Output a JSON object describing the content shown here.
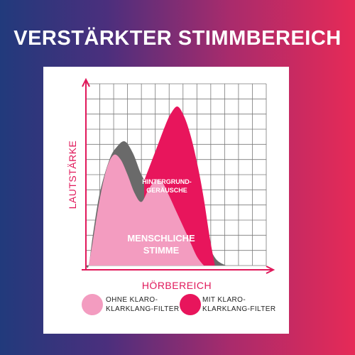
{
  "title": "VERSTÄRKTER STIMMBEREICH",
  "colors": {
    "background_left": "#213a7c",
    "background_right": "#e62a57",
    "grid": "#7a7a7a",
    "axis": "#e0185a",
    "noise": "#6a6a6a",
    "voice_without_filter": "#f39cc0",
    "voice_with_filter": "#e8155c"
  },
  "chart_data": {
    "type": "area",
    "xlabel": "HÖRBEREICH",
    "ylabel": "LAUTSTÄRKE",
    "grid": true,
    "xlim": [
      0,
      13
    ],
    "ylim": [
      0,
      12
    ],
    "series": [
      {
        "name": "HINTERGRUND-GERÄUSCHE",
        "color": "#6a6a6a",
        "x": [
          0,
          0.2,
          0.5,
          1.0,
          1.7,
          2.2,
          2.8,
          3.4,
          4.0,
          4.6,
          5.2,
          5.8,
          6.4,
          7.0,
          7.6,
          8.2,
          8.8,
          9.4,
          10.1
        ],
        "y": [
          0,
          0,
          2.0,
          4.8,
          7.0,
          7.8,
          8.2,
          7.4,
          6.0,
          5.2,
          5.6,
          6.0,
          5.6,
          4.7,
          3.7,
          2.6,
          1.4,
          0.4,
          0
        ]
      },
      {
        "name": "MIT KLARO-KLARKLANG-FILTER",
        "color": "#e8155c",
        "x": [
          4.2,
          4.7,
          5.2,
          5.7,
          6.1,
          6.6,
          7.1,
          7.6,
          8.1,
          8.5,
          8.9,
          9.3
        ],
        "y": [
          5.6,
          6.8,
          8.0,
          9.2,
          10.0,
          10.5,
          9.8,
          8.4,
          6.4,
          4.4,
          2.0,
          0
        ]
      },
      {
        "name": "MENSCHLICHE STIMME",
        "color": "#f39cc0",
        "x": [
          0.2,
          0.5,
          1.0,
          1.5,
          2.0,
          2.5,
          3.0,
          3.5,
          4.0,
          4.5,
          5.0,
          5.5,
          6.0,
          6.5,
          7.0,
          7.5,
          8.0,
          8.5
        ],
        "y": [
          0,
          1.6,
          4.4,
          6.4,
          7.3,
          7.0,
          6.0,
          4.8,
          4.2,
          5.0,
          5.6,
          5.5,
          4.6,
          3.6,
          2.6,
          1.6,
          0.6,
          0
        ]
      }
    ],
    "annotations": [
      {
        "text": "HINTERGRUND-\nGERÄUSCHE",
        "color": "#ffffff"
      },
      {
        "text": "MENSCHLICHE\nSTIMME",
        "color": "#ffffff"
      }
    ],
    "legend": {
      "placement": "bottom",
      "items": [
        {
          "label": "OHNE KLARO-\nKLARKLANG-FILTER",
          "color": "#f39cc0"
        },
        {
          "label": "MIT KLARO-\nKLARKLANG-FILTER",
          "color": "#e8155c"
        }
      ]
    }
  }
}
